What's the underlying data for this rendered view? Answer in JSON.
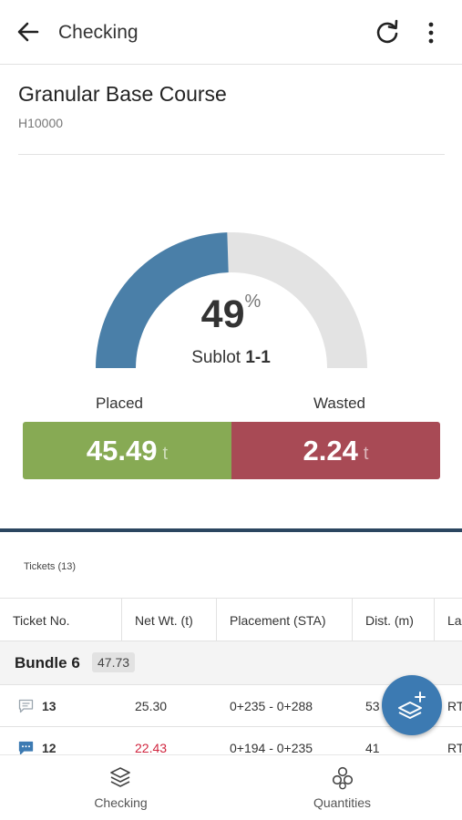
{
  "appbar": {
    "title": "Checking",
    "back_icon": "arrow-left-icon",
    "refresh_icon": "refresh-icon",
    "more_icon": "more-vertical-icon"
  },
  "header": {
    "name": "Granular Base Course",
    "code": "H10000"
  },
  "gauge": {
    "percent": "49",
    "percent_symbol": "%",
    "progress_fraction": 0.49,
    "sublot_prefix": "Sublot",
    "sublot_id": "1-1",
    "fill_color": "#4a7fa8",
    "track_color": "#e3e3e3"
  },
  "summary": {
    "placed_label": "Placed",
    "placed_value": "45.49",
    "placed_unit": "t",
    "placed_color": "#87aa54",
    "wasted_label": "Wasted",
    "wasted_value": "2.24",
    "wasted_unit": "t",
    "wasted_color": "#a84a55"
  },
  "tickets": {
    "title": "Tickets (13)",
    "columns": [
      "Ticket No.",
      "Net Wt. (t)",
      "Placement (STA)",
      "Dist. (m)",
      "La"
    ],
    "group": {
      "name": "Bundle 6",
      "total": "47.73"
    },
    "rows": [
      {
        "ticket_no": "13",
        "net_wt": "25.30",
        "placement": "0+235 - 0+288",
        "dist": "53",
        "lane": "RT",
        "comment_icon": "comment-outline-icon",
        "net_wt_alert": false
      },
      {
        "ticket_no": "12",
        "net_wt": "22.43",
        "placement": "0+194 - 0+235",
        "dist": "41",
        "lane": "RT",
        "comment_icon": "comment-filled-icon",
        "net_wt_alert": true
      }
    ]
  },
  "fab": {
    "icon": "add-layer-icon"
  },
  "bottom_nav": [
    {
      "label": "Checking",
      "icon": "layers-icon"
    },
    {
      "label": "Quantities",
      "icon": "stacked-circles-icon"
    }
  ]
}
